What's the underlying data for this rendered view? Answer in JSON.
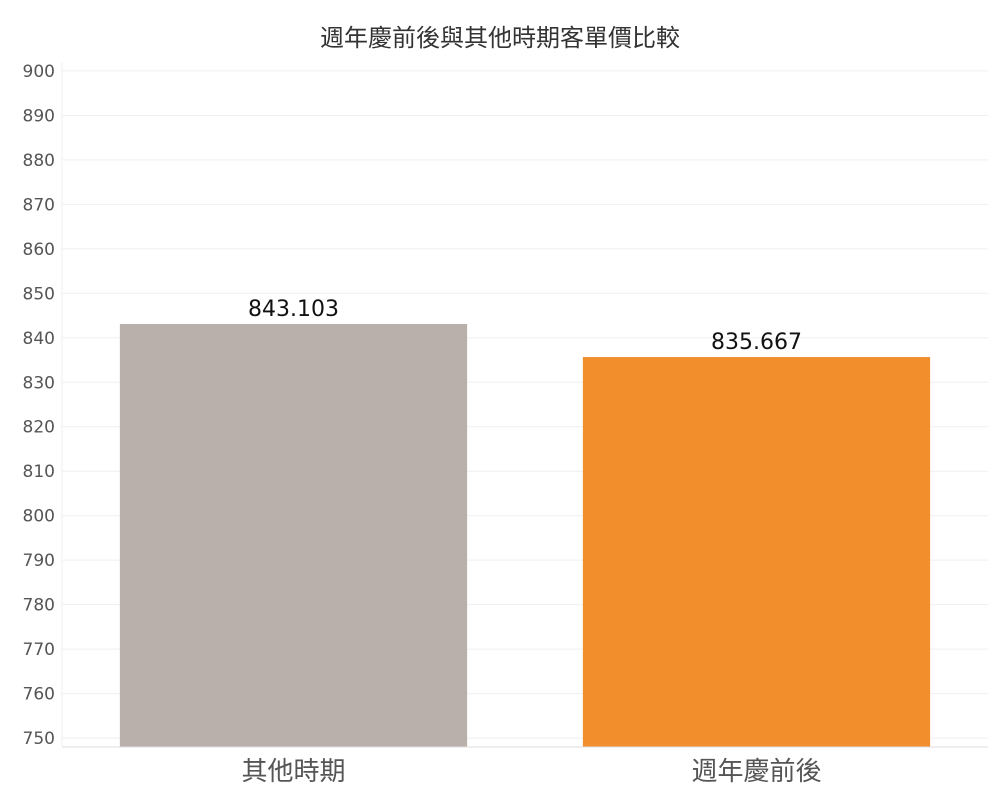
{
  "chart_data": {
    "type": "bar",
    "title": "週年慶前後與其他時期客單價比較",
    "xlabel": "",
    "ylabel": "",
    "categories": [
      "其他時期",
      "週年慶前後"
    ],
    "values": [
      843.103,
      835.667
    ],
    "data_labels": [
      "843.103",
      "835.667"
    ],
    "ylim": [
      748,
      902
    ],
    "yticks": [
      750,
      760,
      770,
      780,
      790,
      800,
      810,
      820,
      830,
      840,
      850,
      860,
      870,
      880,
      890,
      900
    ],
    "grid": true,
    "legend": "none",
    "colors": [
      "#BAB0AB",
      "#F28E2B"
    ],
    "grid_color": "#EFEFEF",
    "axis_color": "#DDDDDD"
  }
}
